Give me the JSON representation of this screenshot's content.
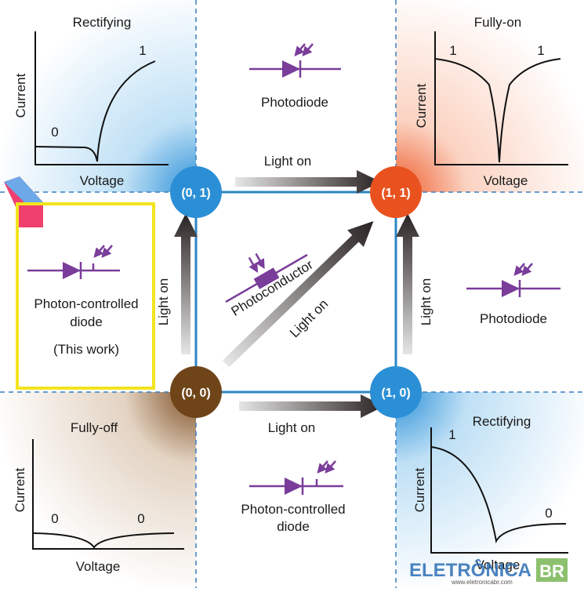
{
  "panels": [
    {
      "title": "Rectifying",
      "y_axis": "Current",
      "x_axis": "Voltage",
      "state_labels": [
        "1",
        "0"
      ]
    },
    {
      "title": "Fully-on",
      "y_axis": "Current",
      "x_axis": "Voltage",
      "state_labels": [
        "1",
        "1"
      ]
    },
    {
      "title": "Fully-off",
      "y_axis": "Current",
      "x_axis": "Voltage",
      "state_labels": [
        "0",
        "0"
      ]
    },
    {
      "title": "Rectifying",
      "y_axis": "Current",
      "x_axis": "Voltage",
      "state_labels": [
        "1",
        "0"
      ]
    }
  ],
  "nodes": [
    {
      "label": "(0, 1)"
    },
    {
      "label": "(1, 1)"
    },
    {
      "label": "(0, 0)"
    },
    {
      "label": "(1, 0)"
    }
  ],
  "transitions": [
    {
      "label": "Light on"
    },
    {
      "label": "Light on"
    },
    {
      "label": "Light on"
    },
    {
      "label": "Light on"
    },
    {
      "label": "Light on"
    }
  ],
  "devices": [
    {
      "label": "Photodiode"
    },
    {
      "label": "Photodiode"
    },
    {
      "label": "Photoconductor"
    },
    {
      "lines": [
        "Photon-controlled",
        "diode"
      ]
    }
  ],
  "highlight": {
    "lines": [
      "Photon-controlled",
      "diode"
    ],
    "note": "(This work)"
  },
  "watermark": {
    "brand": "ELETRÔNICA",
    "badge": "BR",
    "url": "www.eletronicabr.com"
  }
}
